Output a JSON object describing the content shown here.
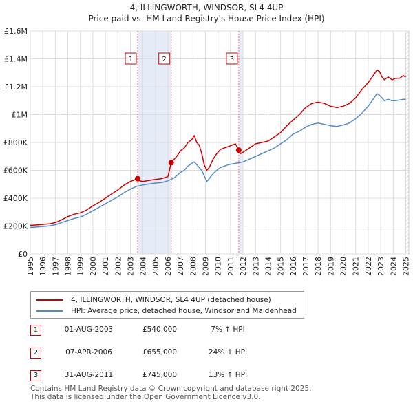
{
  "chart_data": {
    "type": "line",
    "title": "4, ILLINGWORTH, WINDSOR, SL4 4UP",
    "subtitle": "Price paid vs. HM Land Registry's House Price Index (HPI)",
    "xlabel": "",
    "ylabel": "",
    "xlim": [
      1995.0,
      2025.25
    ],
    "ylim": [
      0,
      1600000
    ],
    "x_ticks": [
      "1995",
      "1996",
      "1997",
      "1998",
      "1999",
      "2000",
      "2001",
      "2002",
      "2003",
      "2004",
      "2005",
      "2006",
      "2007",
      "2008",
      "2009",
      "2010",
      "2011",
      "2012",
      "2013",
      "2014",
      "2015",
      "2016",
      "2017",
      "2018",
      "2019",
      "2020",
      "2021",
      "2022",
      "2023",
      "2024",
      "2025"
    ],
    "y_ticks": [
      {
        "value": 0,
        "label": "£0"
      },
      {
        "value": 200000,
        "label": "£200K"
      },
      {
        "value": 400000,
        "label": "£400K"
      },
      {
        "value": 600000,
        "label": "£600K"
      },
      {
        "value": 800000,
        "label": "£800K"
      },
      {
        "value": 1000000,
        "label": "£1M"
      },
      {
        "value": 1200000,
        "label": "£1.2M"
      },
      {
        "value": 1400000,
        "label": "£1.4M"
      },
      {
        "value": 1600000,
        "label": "£1.6M"
      }
    ],
    "grid": true,
    "series": [
      {
        "name": "4, ILLINGWORTH, WINDSOR, SL4 4UP (detached house)",
        "color": "#cc0000",
        "x": [
          1995.0,
          1995.5,
          1996.0,
          1996.5,
          1997.0,
          1997.5,
          1998.0,
          1998.5,
          1999.0,
          1999.5,
          2000.0,
          2000.5,
          2001.0,
          2001.5,
          2002.0,
          2002.5,
          2003.0,
          2003.58,
          2003.7,
          2004.0,
          2004.5,
          2005.0,
          2005.5,
          2006.0,
          2006.26,
          2006.4,
          2006.7,
          2007.0,
          2007.3,
          2007.6,
          2007.9,
          2008.1,
          2008.3,
          2008.5,
          2008.7,
          2008.9,
          2009.1,
          2009.3,
          2009.6,
          2009.9,
          2010.2,
          2010.5,
          2010.8,
          2011.1,
          2011.4,
          2011.66,
          2011.8,
          2012.0,
          2012.5,
          2013.0,
          2013.5,
          2014.0,
          2014.5,
          2015.0,
          2015.5,
          2016.0,
          2016.5,
          2017.0,
          2017.5,
          2018.0,
          2018.5,
          2019.0,
          2019.5,
          2020.0,
          2020.5,
          2021.0,
          2021.5,
          2022.0,
          2022.4,
          2022.7,
          2022.9,
          2023.1,
          2023.3,
          2023.6,
          2023.9,
          2024.2,
          2024.5,
          2024.8,
          2025.0
        ],
        "y": [
          205000,
          208000,
          212000,
          216000,
          225000,
          245000,
          268000,
          285000,
          295000,
          315000,
          345000,
          370000,
          400000,
          430000,
          460000,
          495000,
          520000,
          540000,
          525000,
          520000,
          528000,
          535000,
          540000,
          555000,
          655000,
          670000,
          700000,
          740000,
          760000,
          800000,
          820000,
          850000,
          800000,
          780000,
          720000,
          640000,
          600000,
          620000,
          680000,
          720000,
          750000,
          760000,
          770000,
          780000,
          790000,
          745000,
          720000,
          730000,
          760000,
          790000,
          800000,
          810000,
          840000,
          870000,
          920000,
          960000,
          1000000,
          1050000,
          1080000,
          1090000,
          1080000,
          1060000,
          1050000,
          1060000,
          1080000,
          1120000,
          1180000,
          1230000,
          1280000,
          1320000,
          1310000,
          1270000,
          1250000,
          1270000,
          1250000,
          1260000,
          1260000,
          1280000,
          1270000
        ]
      },
      {
        "name": "HPI: Average price, detached house, Windsor and Maidenhead",
        "color": "#5588cc",
        "x": [
          1995.0,
          1995.5,
          1996.0,
          1996.5,
          1997.0,
          1997.5,
          1998.0,
          1998.5,
          1999.0,
          1999.5,
          2000.0,
          2000.5,
          2001.0,
          2001.5,
          2002.0,
          2002.5,
          2003.0,
          2003.5,
          2004.0,
          2004.5,
          2005.0,
          2005.5,
          2006.0,
          2006.5,
          2007.0,
          2007.3,
          2007.6,
          2007.9,
          2008.1,
          2008.4,
          2008.7,
          2008.9,
          2009.1,
          2009.3,
          2009.6,
          2009.9,
          2010.2,
          2010.5,
          2010.8,
          2011.1,
          2011.4,
          2011.7,
          2012.0,
          2012.5,
          2013.0,
          2013.5,
          2014.0,
          2014.5,
          2015.0,
          2015.5,
          2016.0,
          2016.5,
          2017.0,
          2017.5,
          2018.0,
          2018.5,
          2019.0,
          2019.5,
          2020.0,
          2020.5,
          2021.0,
          2021.5,
          2022.0,
          2022.4,
          2022.7,
          2022.9,
          2023.1,
          2023.3,
          2023.6,
          2023.9,
          2024.2,
          2024.5,
          2024.8,
          2025.0
        ],
        "y": [
          190000,
          193000,
          197000,
          201000,
          210000,
          225000,
          240000,
          255000,
          265000,
          285000,
          310000,
          335000,
          360000,
          385000,
          410000,
          440000,
          465000,
          485000,
          495000,
          502000,
          508000,
          512000,
          525000,
          545000,
          585000,
          600000,
          630000,
          650000,
          660000,
          630000,
          600000,
          560000,
          520000,
          540000,
          575000,
          600000,
          620000,
          630000,
          640000,
          645000,
          650000,
          655000,
          660000,
          680000,
          700000,
          720000,
          740000,
          760000,
          790000,
          820000,
          860000,
          880000,
          910000,
          930000,
          940000,
          930000,
          920000,
          915000,
          925000,
          940000,
          970000,
          1010000,
          1060000,
          1110000,
          1150000,
          1140000,
          1120000,
          1100000,
          1110000,
          1100000,
          1100000,
          1105000,
          1110000,
          1110000
        ]
      }
    ],
    "sale_markers": [
      {
        "label": "1",
        "x": 2003.58,
        "y": 540000
      },
      {
        "label": "2",
        "x": 2006.26,
        "y": 655000
      },
      {
        "label": "3",
        "x": 2011.66,
        "y": 745000
      }
    ],
    "shaded_spans": [
      [
        2003.58,
        2006.26
      ],
      [
        2011.66,
        2012.0
      ]
    ],
    "hatched_after": 2025.0
  },
  "legend": {
    "items": [
      {
        "label": "4, ILLINGWORTH, WINDSOR, SL4 4UP (detached house)",
        "color": "#cc0000"
      },
      {
        "label": "HPI: Average price, detached house, Windsor and Maidenhead",
        "color": "#5588cc"
      }
    ]
  },
  "sales": [
    {
      "num": "1",
      "date": "01-AUG-2003",
      "price": "£540,000",
      "hpi": "7% ↑ HPI"
    },
    {
      "num": "2",
      "date": "07-APR-2006",
      "price": "£655,000",
      "hpi": "24% ↑ HPI"
    },
    {
      "num": "3",
      "date": "31-AUG-2011",
      "price": "£745,000",
      "hpi": "13% ↑ HPI"
    }
  ],
  "footer": {
    "line1": "Contains HM Land Registry data © Crown copyright and database right 2025.",
    "line2": "This data is licensed under the Open Government Licence v3.0."
  }
}
